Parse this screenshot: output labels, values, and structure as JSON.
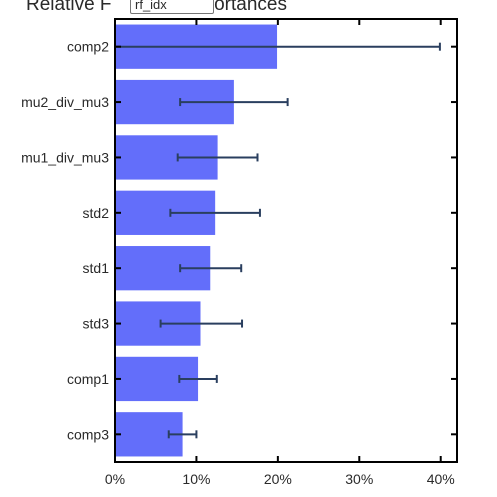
{
  "title_left": "Relative F",
  "title_right": "portances",
  "model_select": {
    "value": "rf_idx"
  },
  "colors": {
    "bar": "#636efa",
    "error": "#2a3f5f",
    "axis": "#000000"
  },
  "chart_data": {
    "type": "bar",
    "orientation": "horizontal",
    "categories": [
      "comp2",
      "mu2_div_mu3",
      "mu1_div_mu3",
      "std2",
      "std1",
      "std3",
      "comp1",
      "comp3"
    ],
    "values": [
      0.199,
      0.146,
      0.126,
      0.123,
      0.117,
      0.105,
      0.102,
      0.083
    ],
    "error_low": [
      0.0,
      0.08,
      0.077,
      0.068,
      0.08,
      0.056,
      0.079,
      0.066
    ],
    "error_high": [
      0.399,
      0.212,
      0.175,
      0.178,
      0.155,
      0.156,
      0.125,
      0.1
    ],
    "xlim": [
      0,
      0.42
    ],
    "xticks": [
      0,
      0.1,
      0.2,
      0.3,
      0.4
    ],
    "xtick_labels": [
      "0%",
      "10%",
      "20%",
      "30%",
      "40%"
    ],
    "xlabel": "",
    "ylabel": "",
    "grid": false
  }
}
